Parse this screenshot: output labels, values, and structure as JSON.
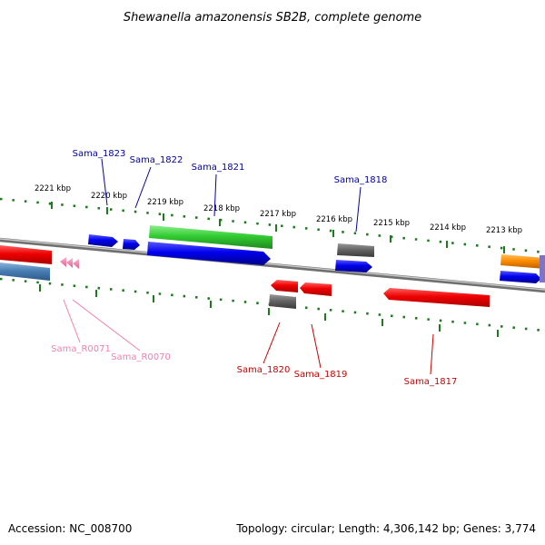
{
  "title": "Shewanella amazonensis SB2B, complete genome",
  "footer": {
    "accession": "Accession: NC_008700",
    "topology": "Topology: circular; Length: 4,306,142 bp; Genes: 3,774"
  },
  "colors": {
    "plus_label": "#00009f",
    "minus_label": "#cc0000",
    "rna_label": "#f080b0",
    "tick": "#1f7a1f",
    "backbone": "#8c8c8c"
  },
  "ticks": [
    "2221 kbp",
    "2220 kbp",
    "2219 kbp",
    "2218 kbp",
    "2217 kbp",
    "2216 kbp",
    "2215 kbp",
    "2214 kbp",
    "2213 kbp"
  ],
  "gene_labels": {
    "sama_1823": "Sama_1823",
    "sama_1822": "Sama_1822",
    "sama_1821": "Sama_1821",
    "sama_1818": "Sama_1818",
    "sama_r0071": "Sama_R0071",
    "sama_r0070": "Sama_R0070",
    "sama_1820": "Sama_1820",
    "sama_1819": "Sama_1819",
    "sama_1817": "Sama_1817"
  }
}
